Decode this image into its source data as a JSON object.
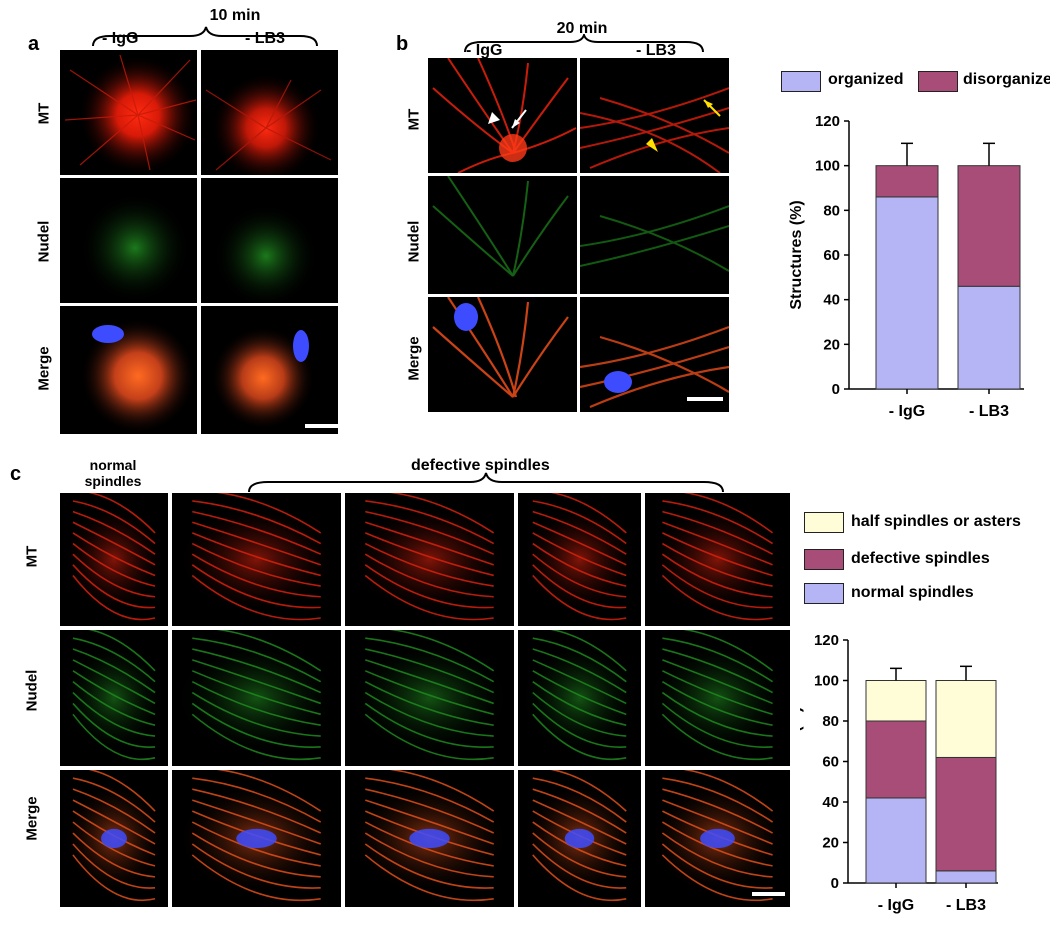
{
  "panel_a": {
    "label": "a",
    "time": "10 min",
    "conditions": [
      "- IgG",
      "- LB3"
    ],
    "rows": [
      "MT",
      "Nudel",
      "Merge"
    ]
  },
  "panel_b": {
    "label": "b",
    "time": "20 min",
    "conditions": [
      "- IgG",
      "- LB3"
    ],
    "rows": [
      "MT",
      "Nudel",
      "Merge"
    ],
    "legend": [
      {
        "name": "organized",
        "color": "#b5b5f5"
      },
      {
        "name": "disorganized",
        "color": "#a84c78"
      }
    ]
  },
  "panel_c": {
    "label": "c",
    "col_header_normal": "normal spindles",
    "col_header_defective": "defective spindles",
    "rows": [
      "MT",
      "Nudel",
      "Merge"
    ],
    "legend": [
      {
        "name": "half spindles or asters",
        "color": "#fefdd8"
      },
      {
        "name": "defective spindles",
        "color": "#a84c78"
      },
      {
        "name": "normal spindles",
        "color": "#b5b5f5"
      }
    ]
  },
  "colors": {
    "mt": "#ff2a10",
    "nudel": "#2fd62f",
    "dna": "#3d4cff",
    "organized": "#b5b5f5",
    "disorganized": "#a84c78",
    "half": "#fefdd8"
  },
  "chart_data": [
    {
      "type": "bar",
      "stacked": true,
      "categories": [
        "- IgG",
        "- LB3"
      ],
      "series": [
        {
          "name": "organized",
          "values": [
            86,
            46
          ],
          "errors": [
            9,
            9
          ]
        },
        {
          "name": "disorganized",
          "values": [
            14,
            54
          ],
          "errors": [
            10,
            10
          ]
        }
      ],
      "ylabel": "Structures (%)",
      "ylim": [
        0,
        120
      ],
      "yticks": [
        "0",
        "20",
        "40",
        "60",
        "80",
        "100",
        "120"
      ],
      "legend": "top"
    },
    {
      "type": "bar",
      "stacked": true,
      "categories": [
        "- IgG",
        "- LB3"
      ],
      "series": [
        {
          "name": "normal spindles",
          "values": [
            42,
            6
          ],
          "errors": [
            2,
            1
          ]
        },
        {
          "name": "defective spindles",
          "values": [
            38,
            56
          ],
          "errors": [
            7,
            6
          ]
        },
        {
          "name": "half spindles or asters",
          "values": [
            20,
            38
          ],
          "errors": [
            6,
            7
          ]
        }
      ],
      "ylabel": "Structures  (%)",
      "ylim": [
        0,
        120
      ],
      "yticks": [
        "0",
        "20",
        "40",
        "60",
        "80",
        "100",
        "120"
      ],
      "legend": "top"
    }
  ]
}
